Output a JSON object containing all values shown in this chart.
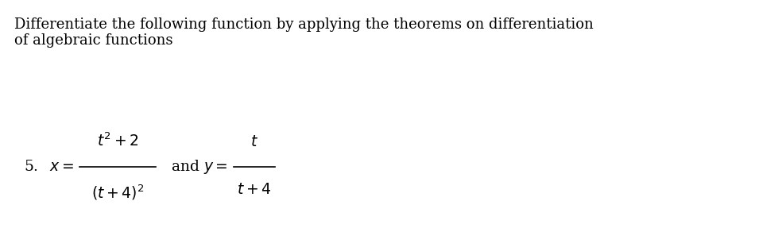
{
  "background_color": "#ffffff",
  "text_color": "#000000",
  "header_line1": "Differentiate the following function by applying the theorems on differentiation",
  "header_line2": "of algebraic functions",
  "header_fontsize": 13.0,
  "formula_fontsize": 13.5,
  "fig_width": 9.55,
  "fig_height": 2.92,
  "dpi": 100
}
